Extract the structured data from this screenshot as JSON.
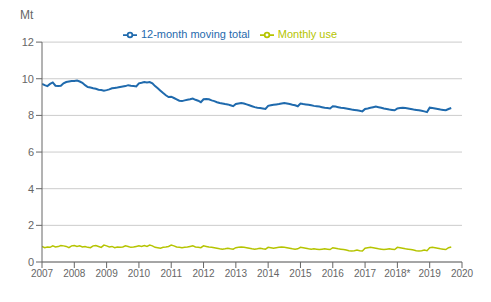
{
  "chart_data": {
    "type": "line",
    "ylabel": "Mt",
    "x": [
      2007,
      2007.0833333333333,
      2007.1666666666667,
      2007.25,
      2007.3333333333333,
      2007.4166666666667,
      2007.5,
      2007.5833333333333,
      2007.6666666666667,
      2007.75,
      2007.8333333333333,
      2007.9166666666667,
      2008,
      2008.0833333333333,
      2008.1666666666667,
      2008.25,
      2008.3333333333333,
      2008.4166666666667,
      2008.5,
      2008.5833333333333,
      2008.6666666666667,
      2008.75,
      2008.8333333333333,
      2008.9166666666667,
      2009,
      2009.0833333333333,
      2009.1666666666667,
      2009.25,
      2009.3333333333333,
      2009.4166666666667,
      2009.5,
      2009.5833333333333,
      2009.6666666666667,
      2009.75,
      2009.8333333333333,
      2009.9166666666667,
      2010,
      2010.0833333333333,
      2010.1666666666667,
      2010.25,
      2010.3333333333333,
      2010.4166666666667,
      2010.5,
      2010.5833333333333,
      2010.6666666666667,
      2010.75,
      2010.8333333333333,
      2010.9166666666667,
      2011,
      2011.0833333333333,
      2011.1666666666667,
      2011.25,
      2011.3333333333333,
      2011.4166666666667,
      2011.5,
      2011.5833333333333,
      2011.6666666666667,
      2011.75,
      2011.8333333333333,
      2011.9166666666667,
      2012,
      2012.0833333333333,
      2012.1666666666667,
      2012.25,
      2012.3333333333333,
      2012.4166666666667,
      2012.5,
      2012.5833333333333,
      2012.6666666666667,
      2012.75,
      2012.8333333333333,
      2012.9166666666667,
      2013,
      2013.0833333333333,
      2013.1666666666667,
      2013.25,
      2013.3333333333333,
      2013.4166666666667,
      2013.5,
      2013.5833333333333,
      2013.6666666666667,
      2013.75,
      2013.8333333333333,
      2013.9166666666667,
      2014,
      2014.0833333333333,
      2014.1666666666667,
      2014.25,
      2014.3333333333333,
      2014.4166666666667,
      2014.5,
      2014.5833333333333,
      2014.6666666666667,
      2014.75,
      2014.8333333333333,
      2014.9166666666667,
      2015,
      2015.0833333333333,
      2015.1666666666667,
      2015.25,
      2015.3333333333333,
      2015.4166666666667,
      2015.5,
      2015.5833333333333,
      2015.6666666666667,
      2015.75,
      2015.8333333333333,
      2015.9166666666667,
      2016,
      2016.0833333333333,
      2016.1666666666667,
      2016.25,
      2016.3333333333333,
      2016.4166666666667,
      2016.5,
      2016.5833333333333,
      2016.6666666666667,
      2016.75,
      2016.8333333333333,
      2016.9166666666667,
      2017,
      2017.0833333333333,
      2017.1666666666667,
      2017.25,
      2017.3333333333333,
      2017.4166666666667,
      2017.5,
      2017.5833333333333,
      2017.6666666666667,
      2017.75,
      2017.8333333333333,
      2017.9166666666667,
      2018,
      2018.0833333333333,
      2018.1666666666667,
      2018.25,
      2018.3333333333333,
      2018.4166666666667,
      2018.5,
      2018.5833333333333,
      2018.6666666666667,
      2018.75,
      2018.8333333333333,
      2018.9166666666667,
      2019,
      2019.0833333333333,
      2019.1666666666667,
      2019.25,
      2019.3333333333333,
      2019.4166666666667,
      2019.5,
      2019.5833333333333,
      2019.6666666666667
    ],
    "series": [
      {
        "name": "12-month moving total",
        "color": "#1f6aad",
        "values": [
          9.72,
          9.65,
          9.6,
          9.72,
          9.8,
          9.62,
          9.6,
          9.62,
          9.75,
          9.82,
          9.85,
          9.88,
          9.88,
          9.9,
          9.85,
          9.78,
          9.65,
          9.55,
          9.52,
          9.48,
          9.45,
          9.4,
          9.38,
          9.35,
          9.38,
          9.42,
          9.48,
          9.5,
          9.52,
          9.55,
          9.58,
          9.6,
          9.65,
          9.62,
          9.6,
          9.58,
          9.75,
          9.78,
          9.82,
          9.8,
          9.82,
          9.75,
          9.6,
          9.48,
          9.35,
          9.22,
          9.1,
          9.0,
          9.02,
          8.95,
          8.88,
          8.8,
          8.78,
          8.82,
          8.85,
          8.88,
          8.92,
          8.85,
          8.8,
          8.72,
          8.88,
          8.9,
          8.88,
          8.82,
          8.78,
          8.72,
          8.68,
          8.65,
          8.62,
          8.6,
          8.55,
          8.5,
          8.62,
          8.65,
          8.68,
          8.65,
          8.6,
          8.55,
          8.5,
          8.45,
          8.42,
          8.4,
          8.38,
          8.35,
          8.52,
          8.55,
          8.58,
          8.6,
          8.62,
          8.65,
          8.68,
          8.65,
          8.62,
          8.58,
          8.55,
          8.5,
          8.65,
          8.62,
          8.6,
          8.58,
          8.55,
          8.52,
          8.5,
          8.48,
          8.45,
          8.42,
          8.4,
          8.38,
          8.5,
          8.48,
          8.45,
          8.42,
          8.4,
          8.38,
          8.35,
          8.32,
          8.3,
          8.28,
          8.25,
          8.22,
          8.35,
          8.38,
          8.42,
          8.45,
          8.48,
          8.45,
          8.42,
          8.38,
          8.35,
          8.32,
          8.3,
          8.28,
          8.38,
          8.4,
          8.42,
          8.4,
          8.38,
          8.35,
          8.32,
          8.3,
          8.28,
          8.25,
          8.22,
          8.18,
          8.42,
          8.4,
          8.38,
          8.35,
          8.32,
          8.3,
          8.28,
          8.35,
          8.4
        ]
      },
      {
        "name": "Monthly use",
        "color": "#b5c400",
        "values": [
          0.85,
          0.78,
          0.82,
          0.8,
          0.88,
          0.82,
          0.84,
          0.9,
          0.88,
          0.85,
          0.78,
          0.88,
          0.9,
          0.85,
          0.88,
          0.82,
          0.85,
          0.8,
          0.78,
          0.88,
          0.9,
          0.85,
          0.8,
          0.92,
          0.88,
          0.82,
          0.85,
          0.78,
          0.82,
          0.8,
          0.82,
          0.88,
          0.85,
          0.8,
          0.82,
          0.85,
          0.88,
          0.85,
          0.9,
          0.85,
          0.92,
          0.88,
          0.8,
          0.78,
          0.75,
          0.8,
          0.82,
          0.85,
          0.92,
          0.88,
          0.82,
          0.8,
          0.78,
          0.8,
          0.82,
          0.85,
          0.88,
          0.82,
          0.8,
          0.78,
          0.88,
          0.85,
          0.82,
          0.8,
          0.78,
          0.75,
          0.72,
          0.7,
          0.72,
          0.75,
          0.72,
          0.7,
          0.78,
          0.8,
          0.82,
          0.8,
          0.78,
          0.75,
          0.72,
          0.7,
          0.72,
          0.75,
          0.72,
          0.7,
          0.8,
          0.78,
          0.75,
          0.78,
          0.8,
          0.82,
          0.8,
          0.78,
          0.75,
          0.72,
          0.7,
          0.72,
          0.8,
          0.78,
          0.75,
          0.72,
          0.7,
          0.72,
          0.7,
          0.68,
          0.7,
          0.72,
          0.7,
          0.68,
          0.78,
          0.75,
          0.72,
          0.7,
          0.68,
          0.65,
          0.62,
          0.6,
          0.62,
          0.65,
          0.62,
          0.6,
          0.75,
          0.78,
          0.8,
          0.78,
          0.75,
          0.72,
          0.7,
          0.68,
          0.7,
          0.72,
          0.7,
          0.68,
          0.8,
          0.78,
          0.75,
          0.72,
          0.7,
          0.68,
          0.65,
          0.62,
          0.6,
          0.62,
          0.65,
          0.62,
          0.78,
          0.8,
          0.78,
          0.75,
          0.72,
          0.7,
          0.68,
          0.78,
          0.82
        ]
      }
    ],
    "xlim": [
      2007,
      2020
    ],
    "xticks": [
      2007,
      2008,
      2009,
      2010,
      2011,
      2012,
      2013,
      2014,
      2015,
      2016,
      2017,
      {
        "value": 2018,
        "label": "2018*"
      },
      2019,
      2020
    ],
    "ylim": [
      0,
      12
    ],
    "yticks": [
      0,
      2,
      4,
      6,
      8,
      10,
      12
    ],
    "grid": true,
    "legend": "top"
  }
}
